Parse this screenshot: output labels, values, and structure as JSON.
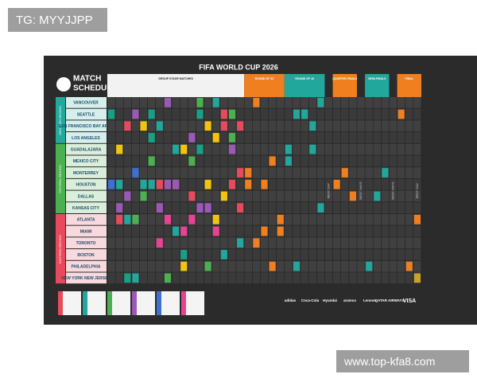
{
  "watermark_top": "TG: MYYJJPP",
  "watermark_bottom": "www.top-kfa8.com",
  "poster": {
    "title": "FIFA WORLD CUP 2026",
    "heading": [
      "MATCH",
      "SCHEDULE"
    ],
    "phases": [
      "GROUP STAGE MATCHES",
      "ROUND OF 32",
      "ROUND OF 16",
      "QUARTER-FINALS",
      "SEMI-FINALS",
      "FINAL"
    ],
    "regions": [
      {
        "name": "WESTERN REGION",
        "cities": [
          "VANCOUVER",
          "SEATTLE",
          "SAN FRANCISCO BAY AREA",
          "LOS ANGELES"
        ]
      },
      {
        "name": "CENTRAL REGION",
        "cities": [
          "GUADALAJARA",
          "MEXICO CITY",
          "MONTERREY",
          "HOUSTON",
          "DALLAS",
          "KANSAS CITY"
        ]
      },
      {
        "name": "EASTERN REGION",
        "cities": [
          "ATLANTA",
          "MIAMI",
          "TORONTO",
          "BOSTON",
          "PHILADELPHIA",
          "NEW YORK NEW JERSEY"
        ]
      }
    ],
    "rest_labels": [
      "REST DAY",
      "REST DAYS",
      "REST DAYS",
      "REST DAY"
    ],
    "sponsors": [
      "adidas",
      "Coca-Cola",
      "Hyundai",
      "aramco",
      "Lenovo",
      "QATAR AIRWAYS",
      "VISA"
    ]
  }
}
